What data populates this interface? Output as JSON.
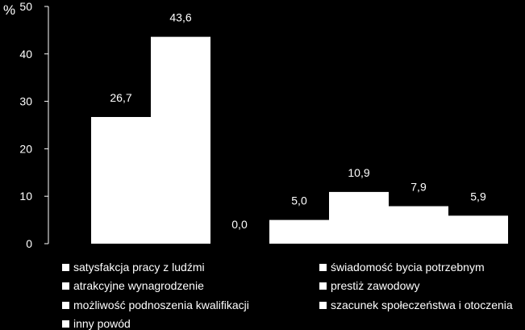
{
  "chart_data": {
    "type": "bar",
    "ylabel": "%",
    "ylim": [
      0,
      50
    ],
    "yticks": [
      "0",
      "10",
      "20",
      "30",
      "40",
      "50"
    ],
    "series": [
      {
        "name": "satysfakcja pracy z ludźmi",
        "value": 26.7,
        "label": "26,7"
      },
      {
        "name": "atrakcyjne wynagrodzenie",
        "value": 43.6,
        "label": "43,6"
      },
      {
        "name": "możliwość podnoszenia  kwalifikacji",
        "value": 0.0,
        "label": "0,0"
      },
      {
        "name": "inny powód",
        "value": 5.0,
        "label": "5,0"
      },
      {
        "name": "świadomość  bycia potrzebnym",
        "value": 10.9,
        "label": "10,9"
      },
      {
        "name": "prestiż  zawodowy",
        "value": 7.9,
        "label": "7,9"
      },
      {
        "name": "szacunek  społeczeństwa  i otoczenia",
        "value": 5.9,
        "label": "5,9"
      }
    ],
    "bar_color": "#ffffff",
    "background": "#000000",
    "grid": false,
    "legend_position": "bottom"
  },
  "legend": {
    "items": [
      "satysfakcja pracy z ludźmi",
      "świadomość  bycia potrzebnym",
      "atrakcyjne wynagrodzenie",
      "prestiż  zawodowy",
      "możliwość podnoszenia  kwalifikacji",
      "szacunek  społeczeństwa  i otoczenia",
      "inny powód"
    ]
  }
}
